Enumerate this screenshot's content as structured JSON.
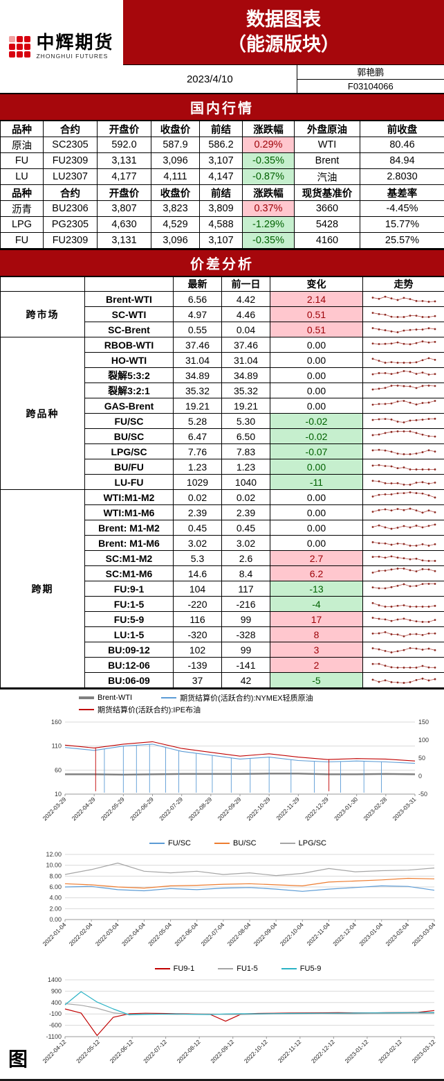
{
  "colors": {
    "banner_red": "#a6070c",
    "logo_red": "#d7000f",
    "up_bg": "#ffc7ce",
    "up_text": "#9c0006",
    "down_bg": "#c6efce",
    "down_text": "#006100",
    "chart_blue": "#5b9bd5",
    "chart_orange": "#ed7d31",
    "chart_gray": "#a5a5a5",
    "chart_red": "#c00000",
    "chart_teal": "#2ab2c5"
  },
  "header": {
    "logo_cn": "中辉期货",
    "logo_en": "ZHONGHUI FUTURES",
    "title_line1": "数据图表",
    "title_line2": "（能源版块）",
    "date": "2023/4/10",
    "author": "郭艳鹏",
    "code": "F03104066"
  },
  "domestic": {
    "section_title": "国内行情",
    "table1": {
      "headers": [
        "品种",
        "合约",
        "开盘价",
        "收盘价",
        "前结",
        "涨跌幅",
        "外盘原油",
        "前收盘"
      ],
      "rows": [
        {
          "cols": [
            "原油",
            "SC2305",
            "592.0",
            "587.9",
            "586.2"
          ],
          "pct": "0.29%",
          "dir": "up",
          "right": [
            "WTI",
            "80.46"
          ]
        },
        {
          "cols": [
            "FU",
            "FU2309",
            "3,131",
            "3,096",
            "3,107"
          ],
          "pct": "-0.35%",
          "dir": "down",
          "right": [
            "Brent",
            "84.94"
          ]
        },
        {
          "cols": [
            "LU",
            "LU2307",
            "4,177",
            "4,111",
            "4,147"
          ],
          "pct": "-0.87%",
          "dir": "down",
          "right": [
            "汽油",
            "2.8030"
          ]
        }
      ]
    },
    "table2": {
      "headers": [
        "品种",
        "合约",
        "开盘价",
        "收盘价",
        "前结",
        "涨跌幅",
        "现货基准价",
        "基差率"
      ],
      "rows": [
        {
          "cols": [
            "沥青",
            "BU2306",
            "3,807",
            "3,823",
            "3,809"
          ],
          "pct": "0.37%",
          "dir": "up",
          "right": [
            "3660",
            "-4.45%"
          ]
        },
        {
          "cols": [
            "LPG",
            "PG2305",
            "4,630",
            "4,529",
            "4,588"
          ],
          "pct": "-1.29%",
          "dir": "down",
          "right": [
            "5428",
            "15.77%"
          ]
        },
        {
          "cols": [
            "FU",
            "FU2309",
            "3,131",
            "3,096",
            "3,107"
          ],
          "pct": "-0.35%",
          "dir": "down",
          "right": [
            "4160",
            "25.57%"
          ]
        }
      ]
    }
  },
  "spread": {
    "section_title": "价差分析",
    "col_headers": [
      "最新",
      "前一日",
      "变化",
      "走势"
    ],
    "groups": [
      {
        "label": "跨市场",
        "rows": [
          {
            "name": "Brent-WTI",
            "latest": "6.56",
            "prev": "4.42",
            "change": "2.14",
            "chg": "up"
          },
          {
            "name": "SC-WTI",
            "latest": "4.97",
            "prev": "4.46",
            "change": "0.51",
            "chg": "up"
          },
          {
            "name": "SC-Brent",
            "latest": "0.55",
            "prev": "0.04",
            "change": "0.51",
            "chg": "up"
          }
        ]
      },
      {
        "label": "跨品种",
        "rows": [
          {
            "name": "RBOB-WTI",
            "latest": "37.46",
            "prev": "37.46",
            "change": "0.00",
            "chg": "flat"
          },
          {
            "name": "HO-WTI",
            "latest": "31.04",
            "prev": "31.04",
            "change": "0.00",
            "chg": "flat"
          },
          {
            "name": "裂解5:3:2",
            "latest": "34.89",
            "prev": "34.89",
            "change": "0.00",
            "chg": "flat"
          },
          {
            "name": "裂解3:2:1",
            "latest": "35.32",
            "prev": "35.32",
            "change": "0.00",
            "chg": "flat"
          },
          {
            "name": "GAS-Brent",
            "latest": "19.21",
            "prev": "19.21",
            "change": "0.00",
            "chg": "flat"
          },
          {
            "name": "FU/SC",
            "latest": "5.28",
            "prev": "5.30",
            "change": "-0.02",
            "chg": "down"
          },
          {
            "name": "BU/SC",
            "latest": "6.47",
            "prev": "6.50",
            "change": "-0.02",
            "chg": "down"
          },
          {
            "name": "LPG/SC",
            "latest": "7.76",
            "prev": "7.83",
            "change": "-0.07",
            "chg": "down"
          },
          {
            "name": "BU/FU",
            "latest": "1.23",
            "prev": "1.23",
            "change": "0.00",
            "chg": "down"
          },
          {
            "name": "LU-FU",
            "latest": "1029",
            "prev": "1040",
            "change": "-11",
            "chg": "down"
          }
        ]
      },
      {
        "label": "跨期",
        "rows": [
          {
            "name": "WTI:M1-M2",
            "latest": "0.02",
            "prev": "0.02",
            "change": "0.00",
            "chg": "flat"
          },
          {
            "name": "WTI:M1-M6",
            "latest": "2.39",
            "prev": "2.39",
            "change": "0.00",
            "chg": "flat"
          },
          {
            "name": "Brent: M1-M2",
            "latest": "0.45",
            "prev": "0.45",
            "change": "0.00",
            "chg": "flat"
          },
          {
            "name": "Brent: M1-M6",
            "latest": "3.02",
            "prev": "3.02",
            "change": "0.00",
            "chg": "flat"
          },
          {
            "name": "SC:M1-M2",
            "latest": "5.3",
            "prev": "2.6",
            "change": "2.7",
            "chg": "up"
          },
          {
            "name": "SC:M1-M6",
            "latest": "14.6",
            "prev": "8.4",
            "change": "6.2",
            "chg": "up"
          },
          {
            "name": "FU:9-1",
            "latest": "104",
            "prev": "117",
            "change": "-13",
            "chg": "down"
          },
          {
            "name": "FU:1-5",
            "latest": "-220",
            "prev": "-216",
            "change": "-4",
            "chg": "down"
          },
          {
            "name": "FU:5-9",
            "latest": "116",
            "prev": "99",
            "change": "17",
            "chg": "up"
          },
          {
            "name": "LU:1-5",
            "latest": "-320",
            "prev": "-328",
            "change": "8",
            "chg": "up"
          },
          {
            "name": "BU:09-12",
            "latest": "102",
            "prev": "99",
            "change": "3",
            "chg": "up"
          },
          {
            "name": "BU:12-06",
            "latest": "-139",
            "prev": "-141",
            "change": "2",
            "chg": "up"
          },
          {
            "name": "BU:06-09",
            "latest": "37",
            "prev": "42",
            "change": "-5",
            "chg": "down"
          }
        ]
      }
    ]
  },
  "figure_label": "图",
  "chart_data": [
    {
      "type": "line",
      "legend": [
        {
          "label": "Brent-WTI",
          "color": "#808080",
          "thick": true
        },
        {
          "label": "期货结算价(活跃合约):NYMEX轻质原油",
          "color": "#5b9bd5",
          "thick": false
        },
        {
          "label": "期货结算价(活跃合约):IPE布油",
          "color": "#c00000",
          "thick": false
        }
      ],
      "x_labels": [
        "2022-03-29",
        "2022-04-29",
        "2022-05-29",
        "2022-06-29",
        "2022-07-29",
        "2022-08-29",
        "2022-09-29",
        "2022-10-29",
        "2022-11-29",
        "2022-12-29",
        "2023-01-30",
        "2023-02-28",
        "2023-03-31"
      ],
      "y_left": {
        "min": 10,
        "max": 160,
        "ticks": [
          10,
          60,
          110,
          160
        ],
        "labels": [
          "10",
          "60",
          "110",
          "160"
        ]
      },
      "y_right": {
        "min": -50,
        "max": 150,
        "ticks": [
          -50,
          0,
          50,
          100,
          150
        ],
        "labels": [
          "-50",
          "0",
          "50",
          "100",
          "150"
        ]
      },
      "series": [
        {
          "name": "Brent-WTI",
          "color": "#808080",
          "width": 2.5,
          "axis": "right",
          "values": [
            5,
            5,
            4,
            5,
            6,
            6,
            6,
            7,
            7,
            5,
            5,
            6,
            5
          ]
        },
        {
          "name": "期货结算价(活跃合约):NYMEX轻质原油",
          "color": "#5b9bd5",
          "width": 1.1,
          "axis": "left",
          "values": [
            107,
            101,
            110,
            114,
            99,
            91,
            83,
            87,
            80,
            77,
            79,
            77,
            74
          ],
          "dips": [
            1.35,
            2.0,
            2.45,
            2.9,
            3.45,
            3.9,
            4.5,
            5.05,
            5.7,
            6.35,
            7.0,
            7.75,
            8.55,
            9.45,
            10.25,
            10.85
          ],
          "dip_to": 13
        },
        {
          "name": "期货结算价(活跃合约):IPE布油",
          "color": "#c00000",
          "width": 1.1,
          "axis": "left",
          "values": [
            112,
            106,
            114,
            119,
            105,
            97,
            89,
            94,
            87,
            82,
            84,
            83,
            79
          ],
          "dips": [
            1.05,
            9.05
          ],
          "dip_to": 16
        }
      ]
    },
    {
      "type": "line",
      "legend": [
        {
          "label": "FU/SC",
          "color": "#5b9bd5",
          "thick": false
        },
        {
          "label": "BU/SC",
          "color": "#ed7d31",
          "thick": false
        },
        {
          "label": "LPG/SC",
          "color": "#a5a5a5",
          "thick": false
        }
      ],
      "x_labels": [
        "2022-01-04",
        "2022-02-04",
        "2022-03-04",
        "2022-04-04",
        "2022-05-04",
        "2022-06-04",
        "2022-07-04",
        "2022-08-04",
        "2022-09-04",
        "2022-10-04",
        "2022-11-04",
        "2022-12-04",
        "2023-01-04",
        "2023-02-04",
        "2023-03-04"
      ],
      "y_left": {
        "min": 0,
        "max": 12,
        "ticks": [
          0,
          2,
          4,
          6,
          8,
          10,
          12
        ],
        "labels": [
          "0.00",
          "2.00",
          "4.00",
          "6.00",
          "8.00",
          "10.00",
          "12.00"
        ]
      },
      "series": [
        {
          "name": "FU/SC",
          "color": "#5b9bd5",
          "width": 1.2,
          "axis": "left",
          "values": [
            6.0,
            6.1,
            5.5,
            5.3,
            5.7,
            5.5,
            5.8,
            5.9,
            5.6,
            5.2,
            5.6,
            5.9,
            6.2,
            6.1,
            5.4
          ]
        },
        {
          "name": "BU/SC",
          "color": "#ed7d31",
          "width": 1.2,
          "axis": "left",
          "values": [
            6.6,
            6.4,
            6.0,
            5.8,
            6.2,
            6.3,
            6.5,
            6.6,
            6.4,
            6.2,
            6.9,
            7.1,
            7.3,
            7.6,
            7.5
          ]
        },
        {
          "name": "LPG/SC",
          "color": "#a5a5a5",
          "width": 1.2,
          "axis": "left",
          "values": [
            8.3,
            9.2,
            10.4,
            8.9,
            8.6,
            8.9,
            8.3,
            8.6,
            8.1,
            8.5,
            9.4,
            8.8,
            9.0,
            9.1,
            9.5
          ]
        }
      ]
    },
    {
      "type": "line",
      "legend": [
        {
          "label": "FU9-1",
          "color": "#c00000",
          "thick": false
        },
        {
          "label": "FU1-5",
          "color": "#a5a5a5",
          "thick": false
        },
        {
          "label": "FU5-9",
          "color": "#2ab2c5",
          "thick": false
        }
      ],
      "x_labels": [
        "2022-04-12",
        "2022-05-12",
        "2022-06-12",
        "2022-07-12",
        "2022-08-12",
        "2022-09-12",
        "2022-10-12",
        "2022-11-12",
        "2022-12-12",
        "2023-01-12",
        "2023-02-12",
        "2023-03-12"
      ],
      "y_left": {
        "min": -1100,
        "max": 1400,
        "ticks": [
          -1100,
          -600,
          -100,
          400,
          900,
          1400
        ],
        "labels": [
          "-1100",
          "-600",
          "-100",
          "400",
          "900",
          "1400"
        ]
      },
      "series": [
        {
          "name": "FU9-1",
          "color": "#c00000",
          "width": 1.2,
          "axis": "left",
          "values": [
            120,
            -60,
            -1050,
            -250,
            -90,
            -70,
            -80,
            -90,
            -100,
            -110,
            -420,
            -100,
            -80,
            -70,
            -60,
            -55,
            -50,
            -45,
            -50,
            -55,
            -45,
            -40,
            -30,
            50
          ]
        },
        {
          "name": "FU1-5",
          "color": "#a5a5a5",
          "width": 1.2,
          "axis": "left",
          "values": [
            350,
            280,
            150,
            -50,
            -120,
            -100,
            -110,
            -120,
            -110,
            -100,
            -120,
            -130,
            -110,
            -100,
            -95,
            -90,
            -85,
            -90,
            -95,
            -85,
            -80,
            -75,
            -70,
            -65
          ]
        },
        {
          "name": "FU5-9",
          "color": "#2ab2c5",
          "width": 1.2,
          "axis": "left",
          "values": [
            300,
            880,
            420,
            120,
            -140,
            -120,
            -110,
            -100,
            -120,
            -130,
            -100,
            -90,
            -95,
            -85,
            -80,
            -75,
            -70,
            -65,
            -60,
            -55,
            -50,
            -45,
            -40,
            -35
          ]
        }
      ]
    }
  ]
}
